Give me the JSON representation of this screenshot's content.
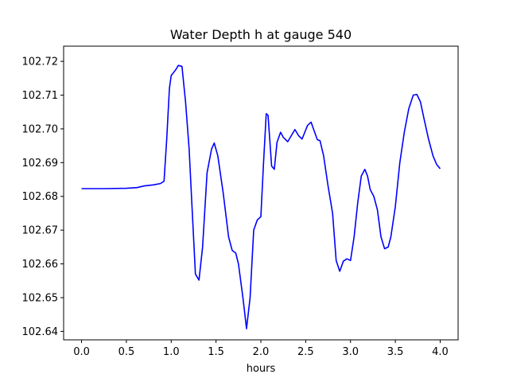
{
  "chart_data": {
    "type": "line",
    "title": "Water Depth h at gauge 540",
    "xlabel": "hours",
    "ylabel": "",
    "xlim": [
      -0.2,
      4.2
    ],
    "ylim": [
      102.6375,
      102.7245
    ],
    "grid": false,
    "xticks": [
      0.0,
      0.5,
      1.0,
      1.5,
      2.0,
      2.5,
      3.0,
      3.5,
      4.0
    ],
    "xtick_labels": [
      "0.0",
      "0.5",
      "1.0",
      "1.5",
      "2.0",
      "2.5",
      "3.0",
      "3.5",
      "4.0"
    ],
    "yticks": [
      102.64,
      102.65,
      102.66,
      102.67,
      102.68,
      102.69,
      102.7,
      102.71,
      102.72
    ],
    "ytick_labels": [
      "102.64",
      "102.65",
      "102.66",
      "102.67",
      "102.68",
      "102.69",
      "102.70",
      "102.71",
      "102.72"
    ],
    "series": [
      {
        "color": "#0000ff",
        "x": [
          0.0,
          0.25,
          0.5,
          0.62,
          0.7,
          0.8,
          0.88,
          0.92,
          0.95,
          0.98,
          1.0,
          1.05,
          1.08,
          1.12,
          1.16,
          1.2,
          1.23,
          1.27,
          1.31,
          1.35,
          1.4,
          1.45,
          1.48,
          1.52,
          1.58,
          1.64,
          1.68,
          1.72,
          1.75,
          1.8,
          1.84,
          1.88,
          1.92,
          1.96,
          2.0,
          2.03,
          2.06,
          2.08,
          2.12,
          2.15,
          2.18,
          2.22,
          2.25,
          2.3,
          2.34,
          2.38,
          2.42,
          2.46,
          2.52,
          2.56,
          2.6,
          2.63,
          2.66,
          2.7,
          2.75,
          2.8,
          2.84,
          2.88,
          2.92,
          2.96,
          3.0,
          3.04,
          3.08,
          3.12,
          3.16,
          3.19,
          3.22,
          3.26,
          3.3,
          3.34,
          3.38,
          3.42,
          3.45,
          3.5,
          3.55,
          3.6,
          3.65,
          3.7,
          3.74,
          3.78,
          3.82,
          3.87,
          3.92,
          3.96,
          4.0
        ],
        "y": [
          102.6823,
          102.6823,
          102.6824,
          102.6826,
          102.6831,
          102.6834,
          102.6838,
          102.6845,
          102.697,
          102.712,
          102.7158,
          102.7175,
          102.7188,
          102.7185,
          102.708,
          102.694,
          102.678,
          102.657,
          102.6552,
          102.665,
          102.687,
          102.694,
          102.6958,
          102.692,
          102.681,
          102.668,
          102.664,
          102.6632,
          102.66,
          102.65,
          102.6408,
          102.65,
          102.67,
          102.673,
          102.674,
          102.69,
          102.7045,
          102.704,
          102.689,
          102.688,
          102.696,
          102.699,
          102.6975,
          102.6962,
          102.698,
          102.6998,
          102.698,
          102.697,
          102.701,
          102.702,
          102.699,
          102.6968,
          102.6965,
          102.692,
          102.683,
          102.675,
          102.661,
          102.6578,
          102.6608,
          102.6615,
          102.661,
          102.668,
          102.678,
          102.686,
          102.688,
          102.686,
          102.682,
          102.68,
          102.676,
          102.668,
          102.6645,
          102.665,
          102.668,
          102.677,
          102.69,
          102.699,
          102.706,
          102.71,
          102.7102,
          102.708,
          102.703,
          102.697,
          102.692,
          102.6895,
          102.6882
        ]
      }
    ]
  }
}
